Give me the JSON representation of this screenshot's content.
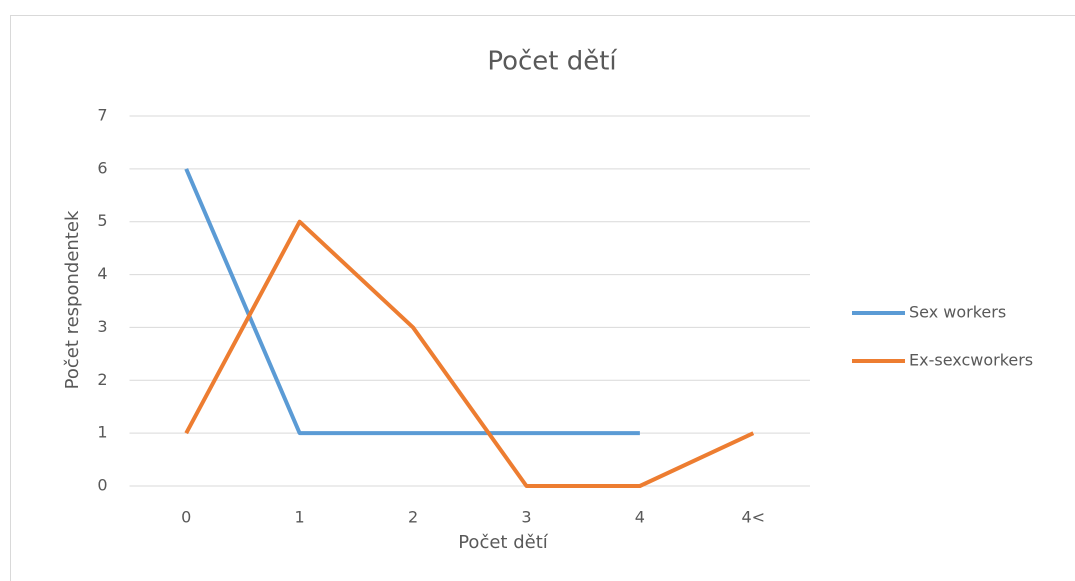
{
  "chart_data": {
    "type": "line",
    "title": "Počet dětí",
    "x_label": "Počet dětí",
    "y_label": "Počet respondentek",
    "categories": [
      "0",
      "1",
      "2",
      "3",
      "4",
      "4<"
    ],
    "series": [
      {
        "name": "Sex workers",
        "color": "#5b9bd5",
        "values": [
          6,
          1,
          1,
          1,
          1,
          null
        ]
      },
      {
        "name": "Ex-sexcworkers",
        "color": "#ed7d31",
        "values": [
          1,
          5,
          3,
          0,
          0,
          1
        ]
      }
    ],
    "ylim": [
      0,
      7
    ],
    "yticks": [
      0,
      1,
      2,
      3,
      4,
      5,
      6,
      7
    ],
    "grid": true,
    "legend": "right"
  }
}
